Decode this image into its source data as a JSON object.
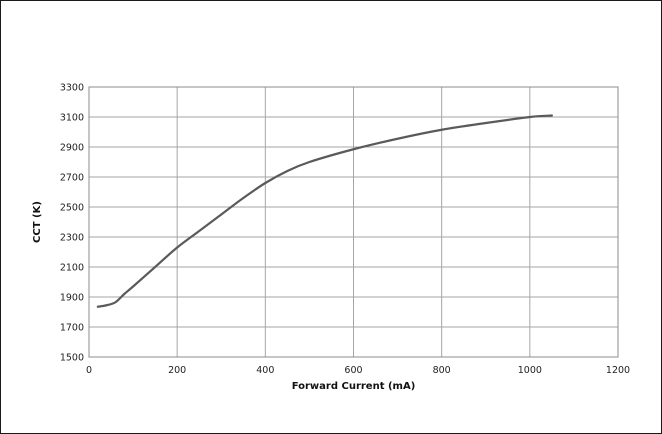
{
  "chart_data": {
    "type": "line",
    "title": "",
    "xlabel": "Forward Current (mA)",
    "ylabel": "CCT (K)",
    "xlim": [
      0,
      1200
    ],
    "ylim": [
      1500,
      3300
    ],
    "x_ticks": [
      "0",
      "200",
      "400",
      "600",
      "800",
      "1000",
      "1200"
    ],
    "y_ticks": [
      "1500",
      "1700",
      "1900",
      "2100",
      "2300",
      "2500",
      "2700",
      "2900",
      "3100",
      "3300"
    ],
    "grid": true,
    "legend": "none",
    "line_color": "#5a5a5a",
    "grid_color": "#a6a6a6",
    "series": [
      {
        "x": [
          20,
          40,
          60,
          80,
          100,
          150,
          200,
          250,
          300,
          350,
          400,
          450,
          500,
          600,
          700,
          800,
          900,
          1000,
          1050
        ],
        "y": [
          1835,
          1845,
          1865,
          1920,
          1970,
          2100,
          2230,
          2340,
          2450,
          2560,
          2660,
          2740,
          2800,
          2885,
          2955,
          3015,
          3060,
          3100,
          3110
        ]
      }
    ]
  }
}
